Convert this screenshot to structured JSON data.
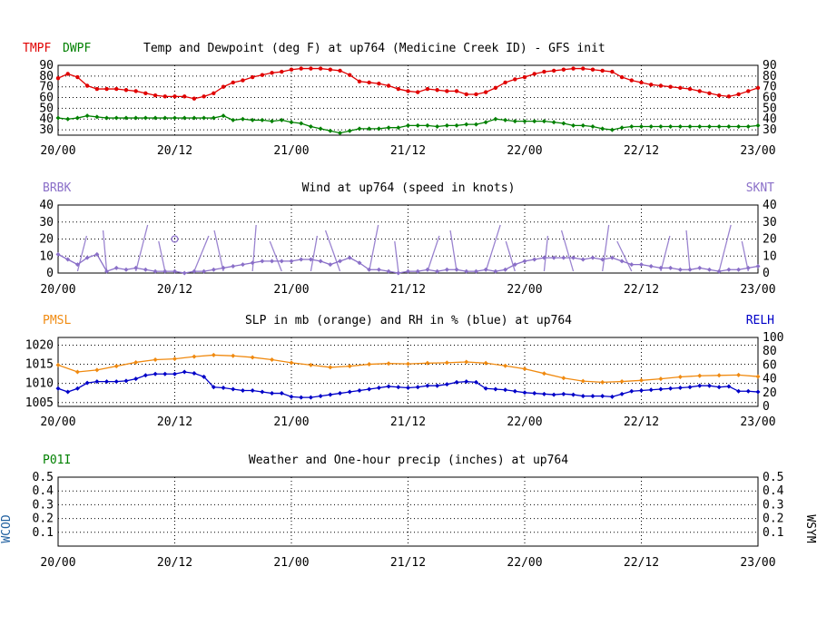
{
  "colors": {
    "red": "#e00000",
    "green": "#008000",
    "purple": "#8a6fc8",
    "orange": "#f08a10",
    "blue": "#0000c8",
    "steel": "#2060a0"
  },
  "x_ticks": [
    "20/00",
    "20/12",
    "21/00",
    "21/12",
    "22/00",
    "22/12",
    "23/00"
  ],
  "chart_data": [
    {
      "type": "line",
      "title": "Temp and Dewpoint (deg F) at up764 (Medicine Creek ID) - GFS init",
      "left_label": "TMPF",
      "left_label2": "DWPF",
      "ylim": [
        25,
        90
      ],
      "y_ticks": [
        30,
        40,
        50,
        60,
        70,
        80,
        90
      ],
      "x_range": [
        0,
        72
      ],
      "series": [
        {
          "name": "TMPF",
          "x": [
            0,
            1,
            2,
            3,
            4,
            5,
            6,
            7,
            8,
            9,
            10,
            11,
            12,
            13,
            14,
            15,
            16,
            17,
            18,
            19,
            20,
            21,
            22,
            23,
            24,
            25,
            26,
            27,
            28,
            29,
            30,
            31,
            32,
            33,
            34,
            35,
            36,
            37,
            38,
            39,
            40,
            41,
            42,
            43,
            44,
            45,
            46,
            47,
            48,
            49,
            50,
            51,
            52,
            53,
            54,
            55,
            56,
            57,
            58,
            59,
            60,
            61,
            62,
            63,
            64,
            65,
            66,
            67,
            68,
            69,
            70,
            71,
            72
          ],
          "values": [
            78,
            82,
            79,
            71,
            68,
            68,
            68,
            67,
            66,
            64,
            62,
            61,
            61,
            61,
            59,
            61,
            64,
            70,
            74,
            76,
            79,
            81,
            83,
            84,
            86,
            87,
            87,
            87,
            86,
            85,
            81,
            75,
            74,
            73,
            71,
            68,
            66,
            65,
            68,
            67,
            66,
            66,
            63,
            63,
            65,
            69,
            74,
            77,
            79,
            82,
            84,
            85,
            86,
            87,
            87,
            86,
            85,
            84,
            79,
            76,
            74,
            72,
            71,
            70,
            69,
            68,
            66,
            64,
            62,
            61,
            63,
            66,
            69
          ]
        },
        {
          "name": "DWPF",
          "x": [
            0,
            1,
            2,
            3,
            4,
            5,
            6,
            7,
            8,
            9,
            10,
            11,
            12,
            13,
            14,
            15,
            16,
            17,
            18,
            19,
            20,
            21,
            22,
            23,
            24,
            25,
            26,
            27,
            28,
            29,
            30,
            31,
            32,
            33,
            34,
            35,
            36,
            37,
            38,
            39,
            40,
            41,
            42,
            43,
            44,
            45,
            46,
            47,
            48,
            49,
            50,
            51,
            52,
            53,
            54,
            55,
            56,
            57,
            58,
            59,
            60,
            61,
            62,
            63,
            64,
            65,
            66,
            67,
            68,
            69,
            70,
            71,
            72
          ],
          "values": [
            41,
            40,
            41,
            43,
            42,
            41,
            41,
            41,
            41,
            41,
            41,
            41,
            41,
            41,
            41,
            41,
            41,
            43,
            39,
            40,
            39,
            39,
            38,
            39,
            37,
            36,
            33,
            31,
            29,
            27,
            29,
            31,
            31,
            31,
            32,
            32,
            34,
            34,
            34,
            33,
            34,
            34,
            35,
            35,
            37,
            40,
            39,
            38,
            38,
            38,
            38,
            37,
            36,
            34,
            34,
            33,
            31,
            30,
            32,
            33,
            33,
            33,
            33,
            33,
            33,
            33,
            33,
            33,
            33,
            33,
            33,
            33,
            34
          ]
        }
      ]
    },
    {
      "type": "line",
      "title": "Wind at up764 (speed in knots)",
      "left_label": "BRBK",
      "right_label": "SKNT",
      "ylim": [
        0,
        40
      ],
      "y_ticks": [
        0,
        10,
        20,
        30,
        40
      ],
      "x_range": [
        0,
        72
      ],
      "series": [
        {
          "name": "SKNT",
          "x": [
            0,
            1,
            2,
            3,
            4,
            5,
            6,
            7,
            8,
            9,
            10,
            11,
            12,
            13,
            14,
            15,
            16,
            17,
            18,
            19,
            20,
            21,
            22,
            23,
            24,
            25,
            26,
            27,
            28,
            29,
            30,
            31,
            32,
            33,
            34,
            35,
            36,
            37,
            38,
            39,
            40,
            41,
            42,
            43,
            44,
            45,
            46,
            47,
            48,
            49,
            50,
            51,
            52,
            53,
            54,
            55,
            56,
            57,
            58,
            59,
            60,
            61,
            62,
            63,
            64,
            65,
            66,
            67,
            68,
            69,
            70,
            71,
            72
          ],
          "values": [
            11,
            8,
            5,
            9,
            11,
            1,
            3,
            2,
            3,
            2,
            1,
            1,
            1,
            0,
            1,
            1,
            2,
            3,
            4,
            5,
            6,
            7,
            7,
            7,
            7,
            8,
            8,
            7,
            5,
            7,
            9,
            6,
            2,
            2,
            1,
            0,
            1,
            1,
            2,
            1,
            2,
            2,
            1,
            1,
            2,
            1,
            2,
            5,
            7,
            8,
            9,
            9,
            9,
            9,
            8,
            9,
            8,
            9,
            7,
            5,
            5,
            4,
            3,
            3,
            2,
            2,
            3,
            2,
            1,
            2,
            2,
            3,
            4
          ]
        }
      ]
    },
    {
      "type": "line",
      "title": "SLP in mb (orange) and RH in % (blue) at up764",
      "left_label": "PMSL",
      "right_label": "RELH",
      "ylim": [
        1004,
        1022
      ],
      "y_ticks": [
        1005,
        1010,
        1015,
        1020
      ],
      "y2lim": [
        0,
        100
      ],
      "y2_ticks": [
        0,
        20,
        40,
        60,
        80,
        100
      ],
      "x_range": [
        0,
        72
      ],
      "series": [
        {
          "name": "PMSL",
          "x": [
            0,
            2,
            4,
            6,
            8,
            10,
            12,
            14,
            16,
            18,
            20,
            22,
            24,
            26,
            28,
            30,
            32,
            34,
            36,
            38,
            40,
            42,
            44,
            46,
            48,
            50,
            52,
            54,
            56,
            58,
            60,
            62,
            64,
            66,
            68,
            70,
            72
          ],
          "values": [
            1014.8,
            1013.0,
            1013.5,
            1014.5,
            1015.5,
            1016.2,
            1016.4,
            1017.0,
            1017.4,
            1017.2,
            1016.8,
            1016.2,
            1015.4,
            1014.8,
            1014.2,
            1014.5,
            1015.0,
            1015.2,
            1015.1,
            1015.3,
            1015.4,
            1015.6,
            1015.3,
            1014.6,
            1013.8,
            1012.6,
            1011.4,
            1010.6,
            1010.3,
            1010.5,
            1010.8,
            1011.2,
            1011.7,
            1012.0,
            1012.1,
            1012.2,
            1011.8
          ]
        },
        {
          "name": "RELH",
          "x": [
            0,
            1,
            2,
            3,
            4,
            5,
            6,
            7,
            8,
            9,
            10,
            11,
            12,
            13,
            14,
            15,
            16,
            17,
            18,
            19,
            20,
            21,
            22,
            23,
            24,
            25,
            26,
            27,
            28,
            29,
            30,
            31,
            32,
            33,
            34,
            35,
            36,
            37,
            38,
            39,
            40,
            41,
            42,
            43,
            44,
            45,
            46,
            47,
            48,
            49,
            50,
            51,
            52,
            53,
            54,
            55,
            56,
            57,
            58,
            59,
            60,
            61,
            62,
            63,
            64,
            65,
            66,
            67,
            68,
            69,
            70,
            71,
            72
          ],
          "values": [
            26,
            21,
            26,
            34,
            36,
            36,
            36,
            37,
            40,
            45,
            47,
            47,
            47,
            50,
            48,
            43,
            28,
            27,
            25,
            23,
            23,
            21,
            19,
            19,
            14,
            13,
            13,
            15,
            17,
            19,
            21,
            23,
            25,
            27,
            29,
            28,
            27,
            28,
            30,
            30,
            32,
            35,
            36,
            35,
            26,
            25,
            24,
            22,
            20,
            19,
            18,
            17,
            18,
            17,
            15,
            15,
            15,
            14,
            18,
            22,
            23,
            24,
            25,
            26,
            27,
            28,
            30,
            30,
            28,
            29,
            22,
            22,
            21
          ]
        }
      ]
    },
    {
      "type": "line",
      "title": "Weather and One-hour precip (inches) at up764",
      "left_label": "P01I",
      "left_vertical_label": "WCOD",
      "right_vertical_label": "WSYM",
      "ylim": [
        0,
        0.5
      ],
      "y_ticks": [
        0.1,
        0.2,
        0.3,
        0.4,
        0.5
      ],
      "x_range": [
        0,
        72
      ],
      "series": []
    }
  ]
}
